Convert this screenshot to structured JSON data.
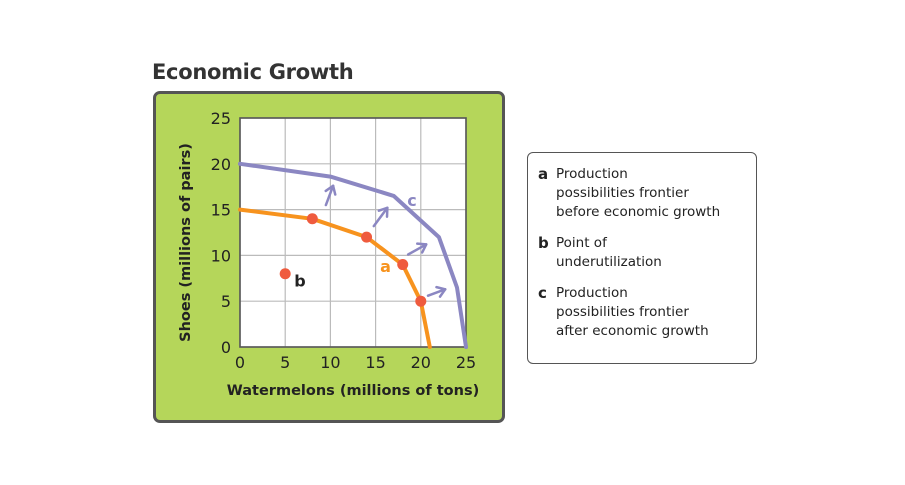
{
  "chart_data": {
    "type": "line",
    "title": "Economic Growth",
    "xlabel": "Watermelons (millions of tons)",
    "ylabel": "Shoes (millions of pairs)",
    "xlim": [
      0,
      25
    ],
    "ylim": [
      0,
      25
    ],
    "xticks": [
      0,
      5,
      10,
      15,
      20,
      25
    ],
    "yticks": [
      0,
      5,
      10,
      15,
      20,
      25
    ],
    "grid": true,
    "series": [
      {
        "name": "a",
        "color": "#f7931e",
        "x": [
          0,
          8,
          14,
          18,
          20,
          21
        ],
        "y": [
          15,
          14,
          12,
          9,
          5,
          0
        ],
        "markers": [
          [
            8,
            14
          ],
          [
            14,
            12
          ],
          [
            18,
            9
          ],
          [
            20,
            5
          ]
        ]
      },
      {
        "name": "c",
        "color": "#8b87c2",
        "x": [
          0,
          10,
          17,
          22,
          24,
          25
        ],
        "y": [
          20,
          18.6,
          16.5,
          12,
          6.5,
          0
        ]
      }
    ],
    "points": [
      {
        "name": "b",
        "x": 5,
        "y": 8,
        "color": "#ef5b3e"
      }
    ],
    "arrows": [
      {
        "from": [
          9.5,
          15.5
        ],
        "to": [
          10.3,
          17.6
        ]
      },
      {
        "from": [
          14.8,
          13.2
        ],
        "to": [
          16.3,
          15.2
        ]
      },
      {
        "from": [
          18.6,
          10.1
        ],
        "to": [
          20.6,
          11.2
        ]
      },
      {
        "from": [
          20.8,
          5.6
        ],
        "to": [
          22.7,
          6.3
        ]
      }
    ],
    "labels": [
      {
        "text": "a",
        "x": 15.5,
        "y": 8.2,
        "color": "#f7931e"
      },
      {
        "text": "b",
        "x": 6.0,
        "y": 6.6,
        "color": "#222222"
      },
      {
        "text": "c",
        "x": 18.5,
        "y": 15.4,
        "color": "#8b87c2"
      }
    ]
  },
  "legend": [
    {
      "key": "a",
      "text": [
        "Production",
        "possibilities frontier",
        "before economic growth"
      ]
    },
    {
      "key": "b",
      "text": [
        "Point of",
        "underutilization"
      ]
    },
    {
      "key": "c",
      "text": [
        "Production",
        "possibilities frontier",
        "after economic growth"
      ]
    }
  ],
  "colors": {
    "panel": "#b5d65a",
    "grid": "#bbbbbb",
    "arrow": "#8b87c2"
  }
}
